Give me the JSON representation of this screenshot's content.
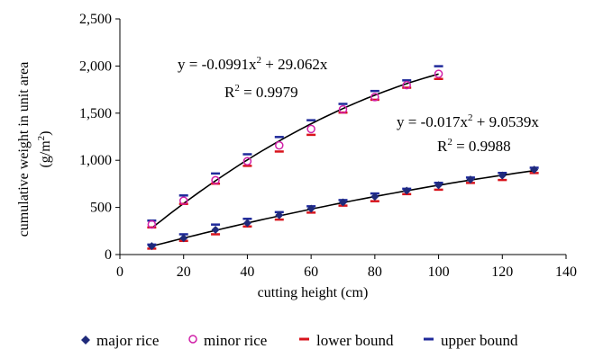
{
  "chart_data": {
    "type": "scatter",
    "xlabel": "cutting height (cm)",
    "ylabel_lines": [
      "cumulative weight in unit area",
      "(g/m",
      "2",
      ")"
    ],
    "xlim": [
      0,
      140
    ],
    "ylim": [
      0,
      2500
    ],
    "x_ticks": [
      0,
      20,
      40,
      60,
      80,
      100,
      120,
      140
    ],
    "y_ticks": [
      0,
      500,
      1000,
      1500,
      2000,
      2500
    ],
    "y_tick_labels": [
      "0",
      "500",
      "1,000",
      "1,500",
      "2,000",
      "2,500"
    ],
    "grid": false,
    "legend_position": "bottom",
    "series": [
      {
        "name": "major rice",
        "marker": "diamond",
        "color": "#1f2a7a",
        "x": [
          10,
          20,
          30,
          40,
          50,
          60,
          70,
          80,
          90,
          100,
          110,
          120,
          130
        ],
        "y": [
          89,
          174,
          263,
          334,
          418,
          487,
          553,
          614,
          677,
          736,
          796,
          839,
          900
        ],
        "lower": [
          63,
          145,
          215,
          298,
          371,
          445,
          519,
          566,
          641,
          688,
          760,
          791,
          865
        ],
        "upper": [
          106,
          215,
          318,
          379,
          450,
          512,
          578,
          648,
          698,
          761,
          817,
          866,
          921
        ],
        "fit_equation": "y = -0.017x",
        "fit_equation_tail": " + 9.0539x",
        "r2_value": " = 0.9988",
        "fit": {
          "a": -0.017,
          "b": 9.0539
        }
      },
      {
        "name": "minor rice",
        "marker": "circle",
        "color": "#d020a8",
        "x": [
          10,
          20,
          30,
          40,
          50,
          60,
          70,
          80,
          90,
          100
        ],
        "y": [
          320,
          571,
          788,
          990,
          1158,
          1332,
          1540,
          1671,
          1797,
          1917
        ],
        "lower": [
          288,
          537,
          752,
          941,
          1093,
          1270,
          1506,
          1642,
          1770,
          1863
        ],
        "upper": [
          360,
          627,
          860,
          1064,
          1247,
          1425,
          1598,
          1735,
          1848,
          1998
        ],
        "fit_equation": "y = -0.0991x",
        "fit_equation_tail": " + 29.062x",
        "r2_value": " = 0.9979",
        "fit": {
          "a": -0.0991,
          "b": 29.062
        }
      },
      {
        "name": "lower bound",
        "marker": "dash",
        "color": "#d8141c"
      },
      {
        "name": "upper bound",
        "marker": "dash",
        "color": "#1f2a9a"
      }
    ],
    "r2_label": "R",
    "superscript_2": "2"
  }
}
